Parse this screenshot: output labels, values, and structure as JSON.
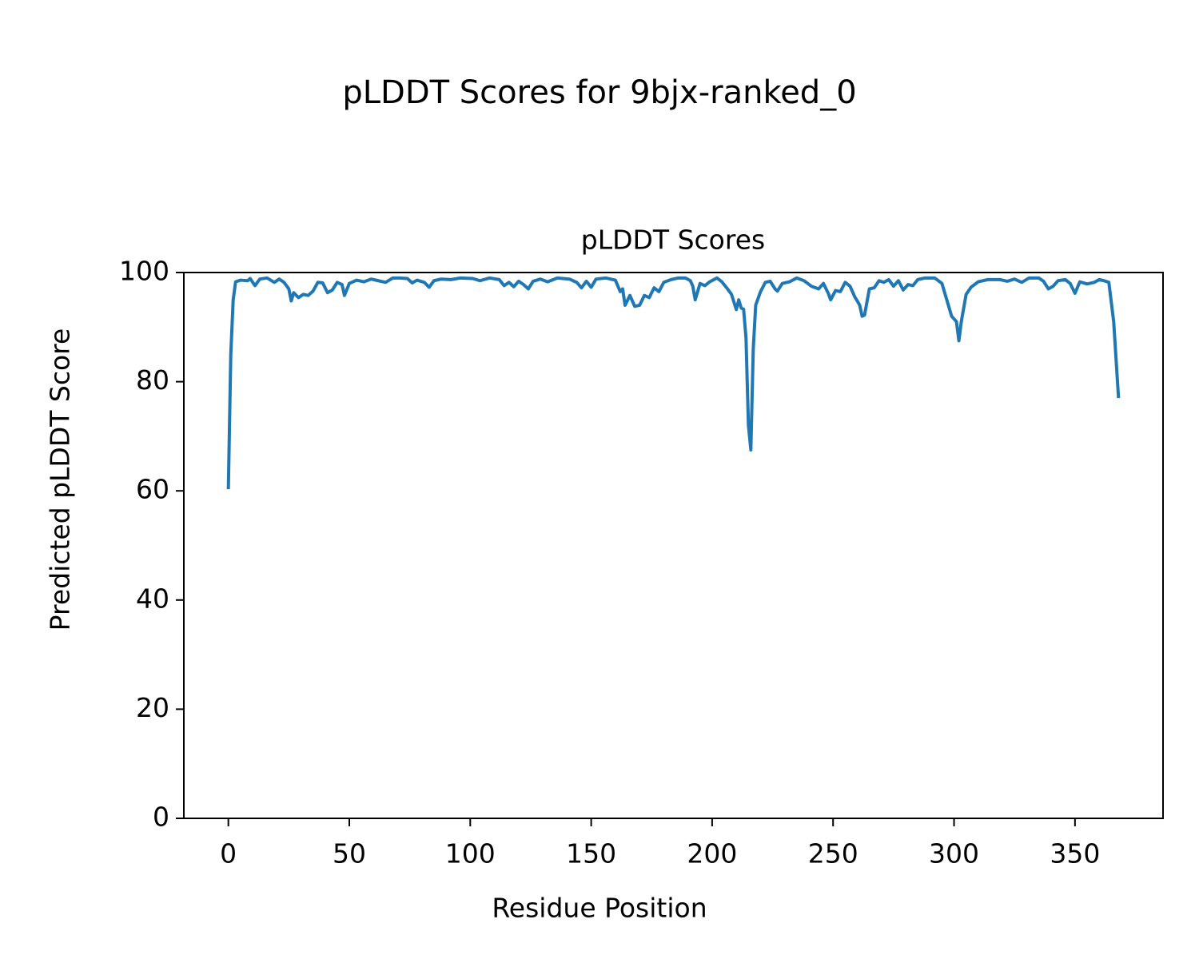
{
  "chart_data": {
    "type": "line",
    "suptitle": "pLDDT Scores for 9bjx-ranked_0",
    "title": "pLDDT Scores",
    "xlabel": "Residue Position",
    "ylabel": "Predicted pLDDT Score",
    "x": [
      0,
      1,
      2,
      3,
      5,
      8,
      9,
      11,
      13,
      16,
      19,
      21,
      23,
      25,
      26,
      27,
      29,
      31,
      33,
      35,
      37,
      39,
      41,
      43,
      45,
      47,
      48,
      50,
      53,
      56,
      59,
      62,
      65,
      68,
      71,
      74,
      76,
      78,
      81,
      83,
      85,
      88,
      92,
      96,
      101,
      104,
      108,
      112,
      114,
      116,
      118,
      120,
      122,
      124,
      126,
      129,
      132,
      136,
      141,
      144,
      146,
      148,
      150,
      152,
      156,
      160,
      162,
      163,
      164,
      166,
      168,
      170,
      172,
      174,
      176,
      178,
      180,
      183,
      186,
      189,
      191,
      192,
      193,
      195,
      197,
      199,
      202,
      204,
      206,
      208,
      210,
      211,
      212,
      213,
      214,
      215,
      216,
      217,
      218,
      220,
      222,
      224,
      226,
      227,
      229,
      232,
      235,
      238,
      241,
      244,
      246,
      248,
      249,
      251,
      253,
      255,
      257,
      259,
      260,
      261,
      262,
      263,
      265,
      267,
      269,
      271,
      273,
      275,
      277,
      279,
      281,
      283,
      285,
      288,
      292,
      295,
      297,
      299,
      301,
      302,
      303,
      305,
      307,
      310,
      314,
      319,
      322,
      325,
      328,
      331,
      335,
      337,
      339,
      341,
      343,
      346,
      348,
      350,
      352,
      355,
      358,
      360,
      362,
      364,
      366,
      368
    ],
    "series": [
      {
        "name": "pLDDT",
        "color": "#1f77b4",
        "values": [
          60.3,
          85,
          95,
          98.3,
          98.6,
          98.5,
          98.9,
          97.6,
          98.8,
          99,
          98.2,
          98.8,
          98.2,
          97,
          94.8,
          96.3,
          95.4,
          96,
          95.8,
          96.6,
          98.2,
          98.1,
          96.3,
          96.8,
          98.2,
          97.8,
          95.8,
          98,
          98.6,
          98.3,
          98.8,
          98.5,
          98.2,
          99,
          99,
          98.9,
          98.1,
          98.6,
          98.2,
          97.3,
          98.5,
          98.8,
          98.7,
          99,
          98.9,
          98.5,
          99,
          98.7,
          97.6,
          98.2,
          97.4,
          98.4,
          97.8,
          97,
          98.4,
          98.8,
          98.3,
          99,
          98.8,
          98.2,
          97.2,
          98.4,
          97.3,
          98.8,
          99,
          98.6,
          96.5,
          97,
          94,
          95.8,
          93.8,
          94,
          95.8,
          95.4,
          97.2,
          96.5,
          98.2,
          98.7,
          99,
          99,
          98.5,
          97.5,
          95,
          98,
          97.6,
          98.3,
          99,
          98.3,
          97.2,
          96,
          93.2,
          95,
          93.5,
          93.3,
          88,
          72,
          67.5,
          86,
          94,
          96.5,
          98.2,
          98.4,
          97,
          96.6,
          98,
          98.3,
          99,
          98.5,
          97.5,
          97,
          98,
          96.2,
          95,
          96.7,
          96.5,
          98.2,
          97.5,
          95.5,
          94.8,
          94,
          92,
          92.2,
          97,
          97.2,
          98.5,
          98.2,
          98.7,
          97.5,
          98.5,
          96.8,
          97.8,
          97.6,
          98.7,
          99,
          99,
          98,
          95,
          92,
          91,
          87.5,
          91,
          96,
          97.3,
          98.3,
          98.7,
          98.7,
          98.4,
          98.8,
          98.2,
          99,
          99,
          98.4,
          97,
          97.5,
          98.5,
          98.7,
          98,
          96.2,
          98.3,
          97.9,
          98.2,
          98.7,
          98.5,
          98.2,
          91,
          77
        ]
      }
    ],
    "xlim": [
      -18.4,
      386.4
    ],
    "xticks": [
      0,
      50,
      100,
      150,
      200,
      250,
      300,
      350
    ],
    "ylim": [
      0,
      100
    ],
    "yticks": [
      0,
      20,
      40,
      60,
      80,
      100
    ],
    "grid": false
  }
}
